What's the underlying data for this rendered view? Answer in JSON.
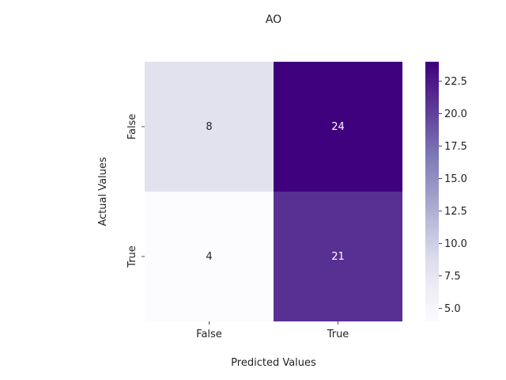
{
  "chart_data": {
    "type": "heatmap",
    "title": "AO",
    "xlabel": "Predicted Values",
    "ylabel": "Actual Values",
    "x_categories": [
      "False",
      "True"
    ],
    "y_categories": [
      "False",
      "True"
    ],
    "values": [
      [
        8,
        24
      ],
      [
        4,
        21
      ]
    ],
    "colormap": "Purples",
    "colorbar": {
      "min": 4,
      "max": 24,
      "ticks": [
        5.0,
        7.5,
        10.0,
        12.5,
        15.0,
        17.5,
        20.0,
        22.5
      ],
      "tick_labels": [
        "5.0",
        "7.5",
        "10.0",
        "12.5",
        "15.0",
        "17.5",
        "20.0",
        "22.5"
      ]
    },
    "grid": false
  }
}
